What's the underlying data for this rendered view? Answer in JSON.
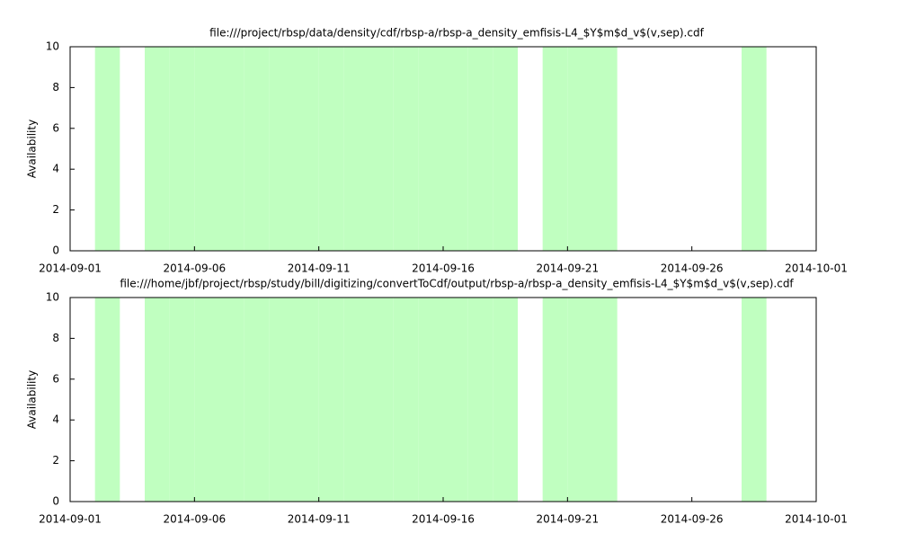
{
  "chart_data": [
    {
      "type": "bar",
      "title": "file:///project/rbsp/data/density/cdf/rbsp-a/rbsp-a_density_emfisis-L4_$Y$m$d_v$(v,sep).cdf",
      "ylabel": "Availability",
      "color": "#c0ffc0",
      "x": [
        "2014-09-02",
        "2014-09-04",
        "2014-09-05",
        "2014-09-06",
        "2014-09-07",
        "2014-09-08",
        "2014-09-09",
        "2014-09-10",
        "2014-09-11",
        "2014-09-12",
        "2014-09-13",
        "2014-09-14",
        "2014-09-15",
        "2014-09-16",
        "2014-09-17",
        "2014-09-18",
        "2014-09-20",
        "2014-09-21",
        "2014-09-22",
        "2014-09-28"
      ],
      "values": [
        10,
        10,
        10,
        10,
        10,
        10,
        10,
        10,
        10,
        10,
        10,
        10,
        10,
        10,
        10,
        10,
        10,
        10,
        10,
        10
      ],
      "xlim": [
        "2014-09-01",
        "2014-10-01"
      ],
      "xticks": [
        "2014-09-01",
        "2014-09-06",
        "2014-09-11",
        "2014-09-16",
        "2014-09-21",
        "2014-09-26",
        "2014-10-01"
      ],
      "ylim": [
        0,
        10
      ],
      "yticks": [
        0,
        2,
        4,
        6,
        8,
        10
      ]
    },
    {
      "type": "bar",
      "title": "file:///home/jbf/project/rbsp/study/bill/digitizing/convertToCdf/output/rbsp-a/rbsp-a_density_emfisis-L4_$Y$m$d_v$(v,sep).cdf",
      "ylabel": "Availability",
      "color": "#c0ffc0",
      "x": [
        "2014-09-02",
        "2014-09-04",
        "2014-09-05",
        "2014-09-06",
        "2014-09-07",
        "2014-09-08",
        "2014-09-09",
        "2014-09-10",
        "2014-09-11",
        "2014-09-12",
        "2014-09-13",
        "2014-09-14",
        "2014-09-15",
        "2014-09-16",
        "2014-09-17",
        "2014-09-18",
        "2014-09-20",
        "2014-09-21",
        "2014-09-22",
        "2014-09-28"
      ],
      "values": [
        10,
        10,
        10,
        10,
        10,
        10,
        10,
        10,
        10,
        10,
        10,
        10,
        10,
        10,
        10,
        10,
        10,
        10,
        10,
        10
      ],
      "xlim": [
        "2014-09-01",
        "2014-10-01"
      ],
      "xticks": [
        "2014-09-01",
        "2014-09-06",
        "2014-09-11",
        "2014-09-16",
        "2014-09-21",
        "2014-09-26",
        "2014-10-01"
      ],
      "ylim": [
        0,
        10
      ],
      "yticks": [
        0,
        2,
        4,
        6,
        8,
        10
      ]
    }
  ]
}
